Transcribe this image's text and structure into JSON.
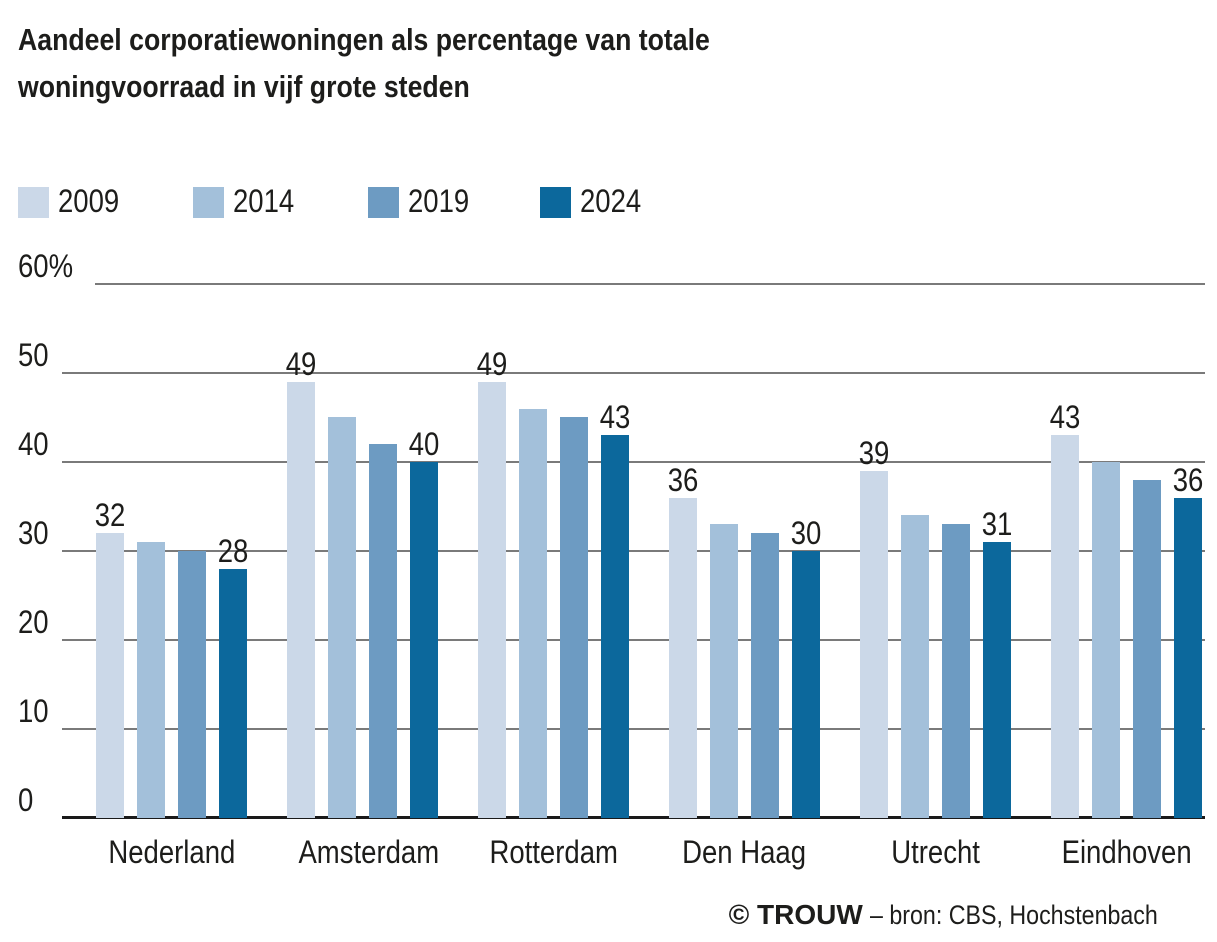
{
  "header": {
    "title_lines": [
      "Aandeel corporatiewoningen als percentage van totale",
      "woningvoorraad in vijf grote steden"
    ]
  },
  "chart_data": {
    "type": "bar",
    "title": "Aandeel corporatiewoningen als percentage van totale woningvoorraad in vijf grote steden",
    "categories": [
      "Nederland",
      "Amsterdam",
      "Rotterdam",
      "Den Haag",
      "Utrecht",
      "Eindhoven"
    ],
    "series": [
      {
        "name": "2009",
        "color": "#cbd8e8",
        "values": [
          32,
          49,
          49,
          36,
          39,
          43
        ]
      },
      {
        "name": "2014",
        "color": "#a3c0da",
        "values": [
          31,
          45,
          46,
          33,
          34,
          40
        ]
      },
      {
        "name": "2019",
        "color": "#6d9bc2",
        "values": [
          30,
          42,
          45,
          32,
          33,
          38
        ]
      },
      {
        "name": "2024",
        "color": "#0c689c",
        "values": [
          28,
          40,
          43,
          30,
          31,
          36
        ]
      }
    ],
    "value_labels_series": [
      0,
      3
    ],
    "labeled_values": {
      "2009": [
        32,
        49,
        49,
        36,
        39,
        43
      ],
      "2024": [
        28,
        40,
        43,
        30,
        31,
        36
      ]
    },
    "xlabel": "",
    "ylabel": "",
    "ylim": [
      0,
      60
    ],
    "yticks": [
      {
        "value": 60,
        "label": "60%"
      },
      {
        "value": 50,
        "label": "50"
      },
      {
        "value": 40,
        "label": "40"
      },
      {
        "value": 30,
        "label": "30"
      },
      {
        "value": 20,
        "label": "20"
      },
      {
        "value": 10,
        "label": "10"
      },
      {
        "value": 0,
        "label": "0"
      }
    ],
    "grid": "horizontal",
    "legend_position": "top-left",
    "colors": {
      "gridline": "#7a7a7a",
      "axis": "#1a1a1a",
      "text": "#1d1d1b",
      "background": "#ffffff"
    }
  },
  "footer": {
    "brand": "© TROUW",
    "source": "– bron: CBS, Hochstenbach"
  }
}
